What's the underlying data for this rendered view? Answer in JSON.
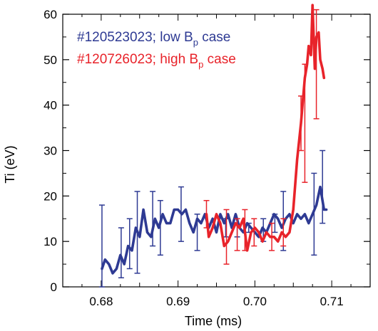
{
  "chart_data": {
    "type": "line",
    "title": "",
    "xlabel": "Time (ms)",
    "ylabel": "Ti (eV)",
    "xlim": [
      0.675,
      0.715
    ],
    "ylim": [
      0,
      60
    ],
    "x_ticks": [
      0.68,
      0.69,
      0.7,
      0.71
    ],
    "x_tick_labels": [
      "0.68",
      "0.69",
      "0.70",
      "0.71"
    ],
    "y_ticks": [
      0,
      10,
      20,
      30,
      40,
      50,
      60
    ],
    "y_tick_labels": [
      "0",
      "10",
      "20",
      "30",
      "40",
      "50",
      "60"
    ],
    "grid": false,
    "legend_position": "top-left",
    "series": [
      {
        "name": "#120523023; low B_p case",
        "label_main": "#120523023; low B",
        "label_sub": "p",
        "label_tail": " case",
        "color": "#2e3a93",
        "x": [
          0.6801,
          0.6805,
          0.681,
          0.6815,
          0.682,
          0.6825,
          0.683,
          0.6835,
          0.684,
          0.6845,
          0.685,
          0.6855,
          0.686,
          0.6865,
          0.687,
          0.6875,
          0.688,
          0.6885,
          0.689,
          0.6895,
          0.69,
          0.6905,
          0.691,
          0.6915,
          0.692,
          0.6925,
          0.693,
          0.6935,
          0.694,
          0.6945,
          0.695,
          0.6955,
          0.696,
          0.6965,
          0.697,
          0.6975,
          0.698,
          0.6985,
          0.699,
          0.6995,
          0.7,
          0.7005,
          0.701,
          0.7015,
          0.702,
          0.7025,
          0.703,
          0.7035,
          0.704,
          0.7045,
          0.705,
          0.7055,
          0.706,
          0.7065,
          0.707,
          0.7075,
          0.708,
          0.7085,
          0.709,
          0.7093
        ],
        "y": [
          4,
          6,
          5,
          3,
          4,
          7,
          5,
          9,
          8,
          13,
          11,
          17,
          12,
          11,
          15,
          13,
          16,
          14,
          14,
          17,
          17,
          16,
          17,
          14,
          12,
          15,
          14,
          16,
          13,
          15,
          12,
          16,
          14,
          16,
          13,
          16,
          13,
          12,
          14,
          13,
          12,
          11,
          13,
          12,
          14,
          16,
          15,
          13,
          15,
          16,
          14,
          16,
          15,
          16,
          14,
          16,
          18,
          22,
          17,
          17
        ],
        "errorbars": [
          {
            "x": 0.6801,
            "lo": 0,
            "hi": 18
          },
          {
            "x": 0.6826,
            "lo": 2,
            "hi": 13
          },
          {
            "x": 0.6837,
            "lo": 4,
            "hi": 15
          },
          {
            "x": 0.6847,
            "lo": 3,
            "hi": 21
          },
          {
            "x": 0.6867,
            "lo": 9,
            "hi": 21
          },
          {
            "x": 0.6877,
            "lo": 7,
            "hi": 19
          },
          {
            "x": 0.6904,
            "lo": 10,
            "hi": 22
          },
          {
            "x": 0.6925,
            "lo": 8,
            "hi": 16
          },
          {
            "x": 0.6962,
            "lo": 11,
            "hi": 15
          },
          {
            "x": 0.6977,
            "lo": 11,
            "hi": 15
          },
          {
            "x": 0.6992,
            "lo": 12,
            "hi": 14
          },
          {
            "x": 0.7011,
            "lo": 10,
            "hi": 15
          },
          {
            "x": 0.7026,
            "lo": 12,
            "hi": 16
          },
          {
            "x": 0.7037,
            "lo": 8,
            "hi": 21
          },
          {
            "x": 0.7077,
            "lo": 7,
            "hi": 25
          },
          {
            "x": 0.7088,
            "lo": 14,
            "hi": 30
          }
        ]
      },
      {
        "name": "#120726023; high B_p case",
        "label_main": "#120726023; high B",
        "label_sub": "p",
        "label_tail": " case",
        "color": "#e8232a",
        "x": [
          0.6937,
          0.694,
          0.6945,
          0.695,
          0.6955,
          0.696,
          0.6965,
          0.697,
          0.6975,
          0.698,
          0.6985,
          0.699,
          0.6995,
          0.7,
          0.7005,
          0.701,
          0.7015,
          0.702,
          0.7025,
          0.703,
          0.7035,
          0.704,
          0.7045,
          0.705,
          0.7055,
          0.706,
          0.7065,
          0.7068,
          0.707,
          0.7073,
          0.7075,
          0.7078,
          0.708,
          0.7083,
          0.7085,
          0.7088,
          0.709
        ],
        "y": [
          16,
          11,
          13,
          16,
          14,
          9,
          10,
          12,
          14,
          13,
          15,
          8,
          12,
          13,
          12,
          10,
          12,
          11,
          11,
          10,
          12,
          11,
          12,
          17,
          28,
          36,
          46,
          49,
          53,
          51,
          62,
          48,
          55,
          56,
          50,
          48,
          46
        ],
        "errorbars": [
          {
            "x": 0.6937,
            "lo": 13,
            "hi": 19
          },
          {
            "x": 0.6963,
            "lo": 5,
            "hi": 17
          },
          {
            "x": 0.6977,
            "lo": 8,
            "hi": 15
          },
          {
            "x": 0.6987,
            "lo": 8,
            "hi": 17
          },
          {
            "x": 0.6999,
            "lo": 9,
            "hi": 15
          },
          {
            "x": 0.7022,
            "lo": 8,
            "hi": 14
          },
          {
            "x": 0.7037,
            "lo": 9,
            "hi": 15
          },
          {
            "x": 0.706,
            "lo": 30,
            "hi": 42
          },
          {
            "x": 0.7065,
            "lo": 23,
            "hi": 49
          },
          {
            "x": 0.708,
            "lo": 37,
            "hi": 61
          }
        ]
      }
    ]
  }
}
